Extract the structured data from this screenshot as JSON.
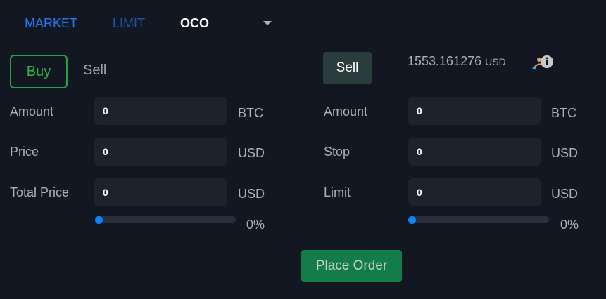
{
  "tabs": [
    {
      "label": "MARKET",
      "color": "#1e7bf0"
    },
    {
      "label": "LIMIT",
      "color": "#1c56b0"
    },
    {
      "label": "OCO",
      "color": "#ffffff",
      "active": true
    }
  ],
  "left": {
    "buy_label": "Buy",
    "sell_label": "Sell",
    "rows": [
      {
        "label": "Amount",
        "value": "0",
        "unit": "BTC"
      },
      {
        "label": "Price",
        "value": "0",
        "unit": "USD"
      },
      {
        "label": "Total Price",
        "value": "0",
        "unit": "USD"
      }
    ],
    "slider_percent": 0,
    "slider_label": "0%"
  },
  "right": {
    "sell_label": "Sell",
    "balance": "1553.161276",
    "balance_unit": "USD",
    "rows": [
      {
        "label": "Amount",
        "value": "0",
        "unit": "BTC"
      },
      {
        "label": "Stop",
        "value": "0",
        "unit": "USD"
      },
      {
        "label": "Limit",
        "value": "0",
        "unit": "USD"
      }
    ],
    "slider_percent": 0,
    "slider_label": "0%"
  },
  "place_order_label": "Place Order",
  "colors": {
    "background": "#131722",
    "buy": "#2bb44a",
    "place_order": "#137d4a",
    "slider": "#0a84ff"
  }
}
